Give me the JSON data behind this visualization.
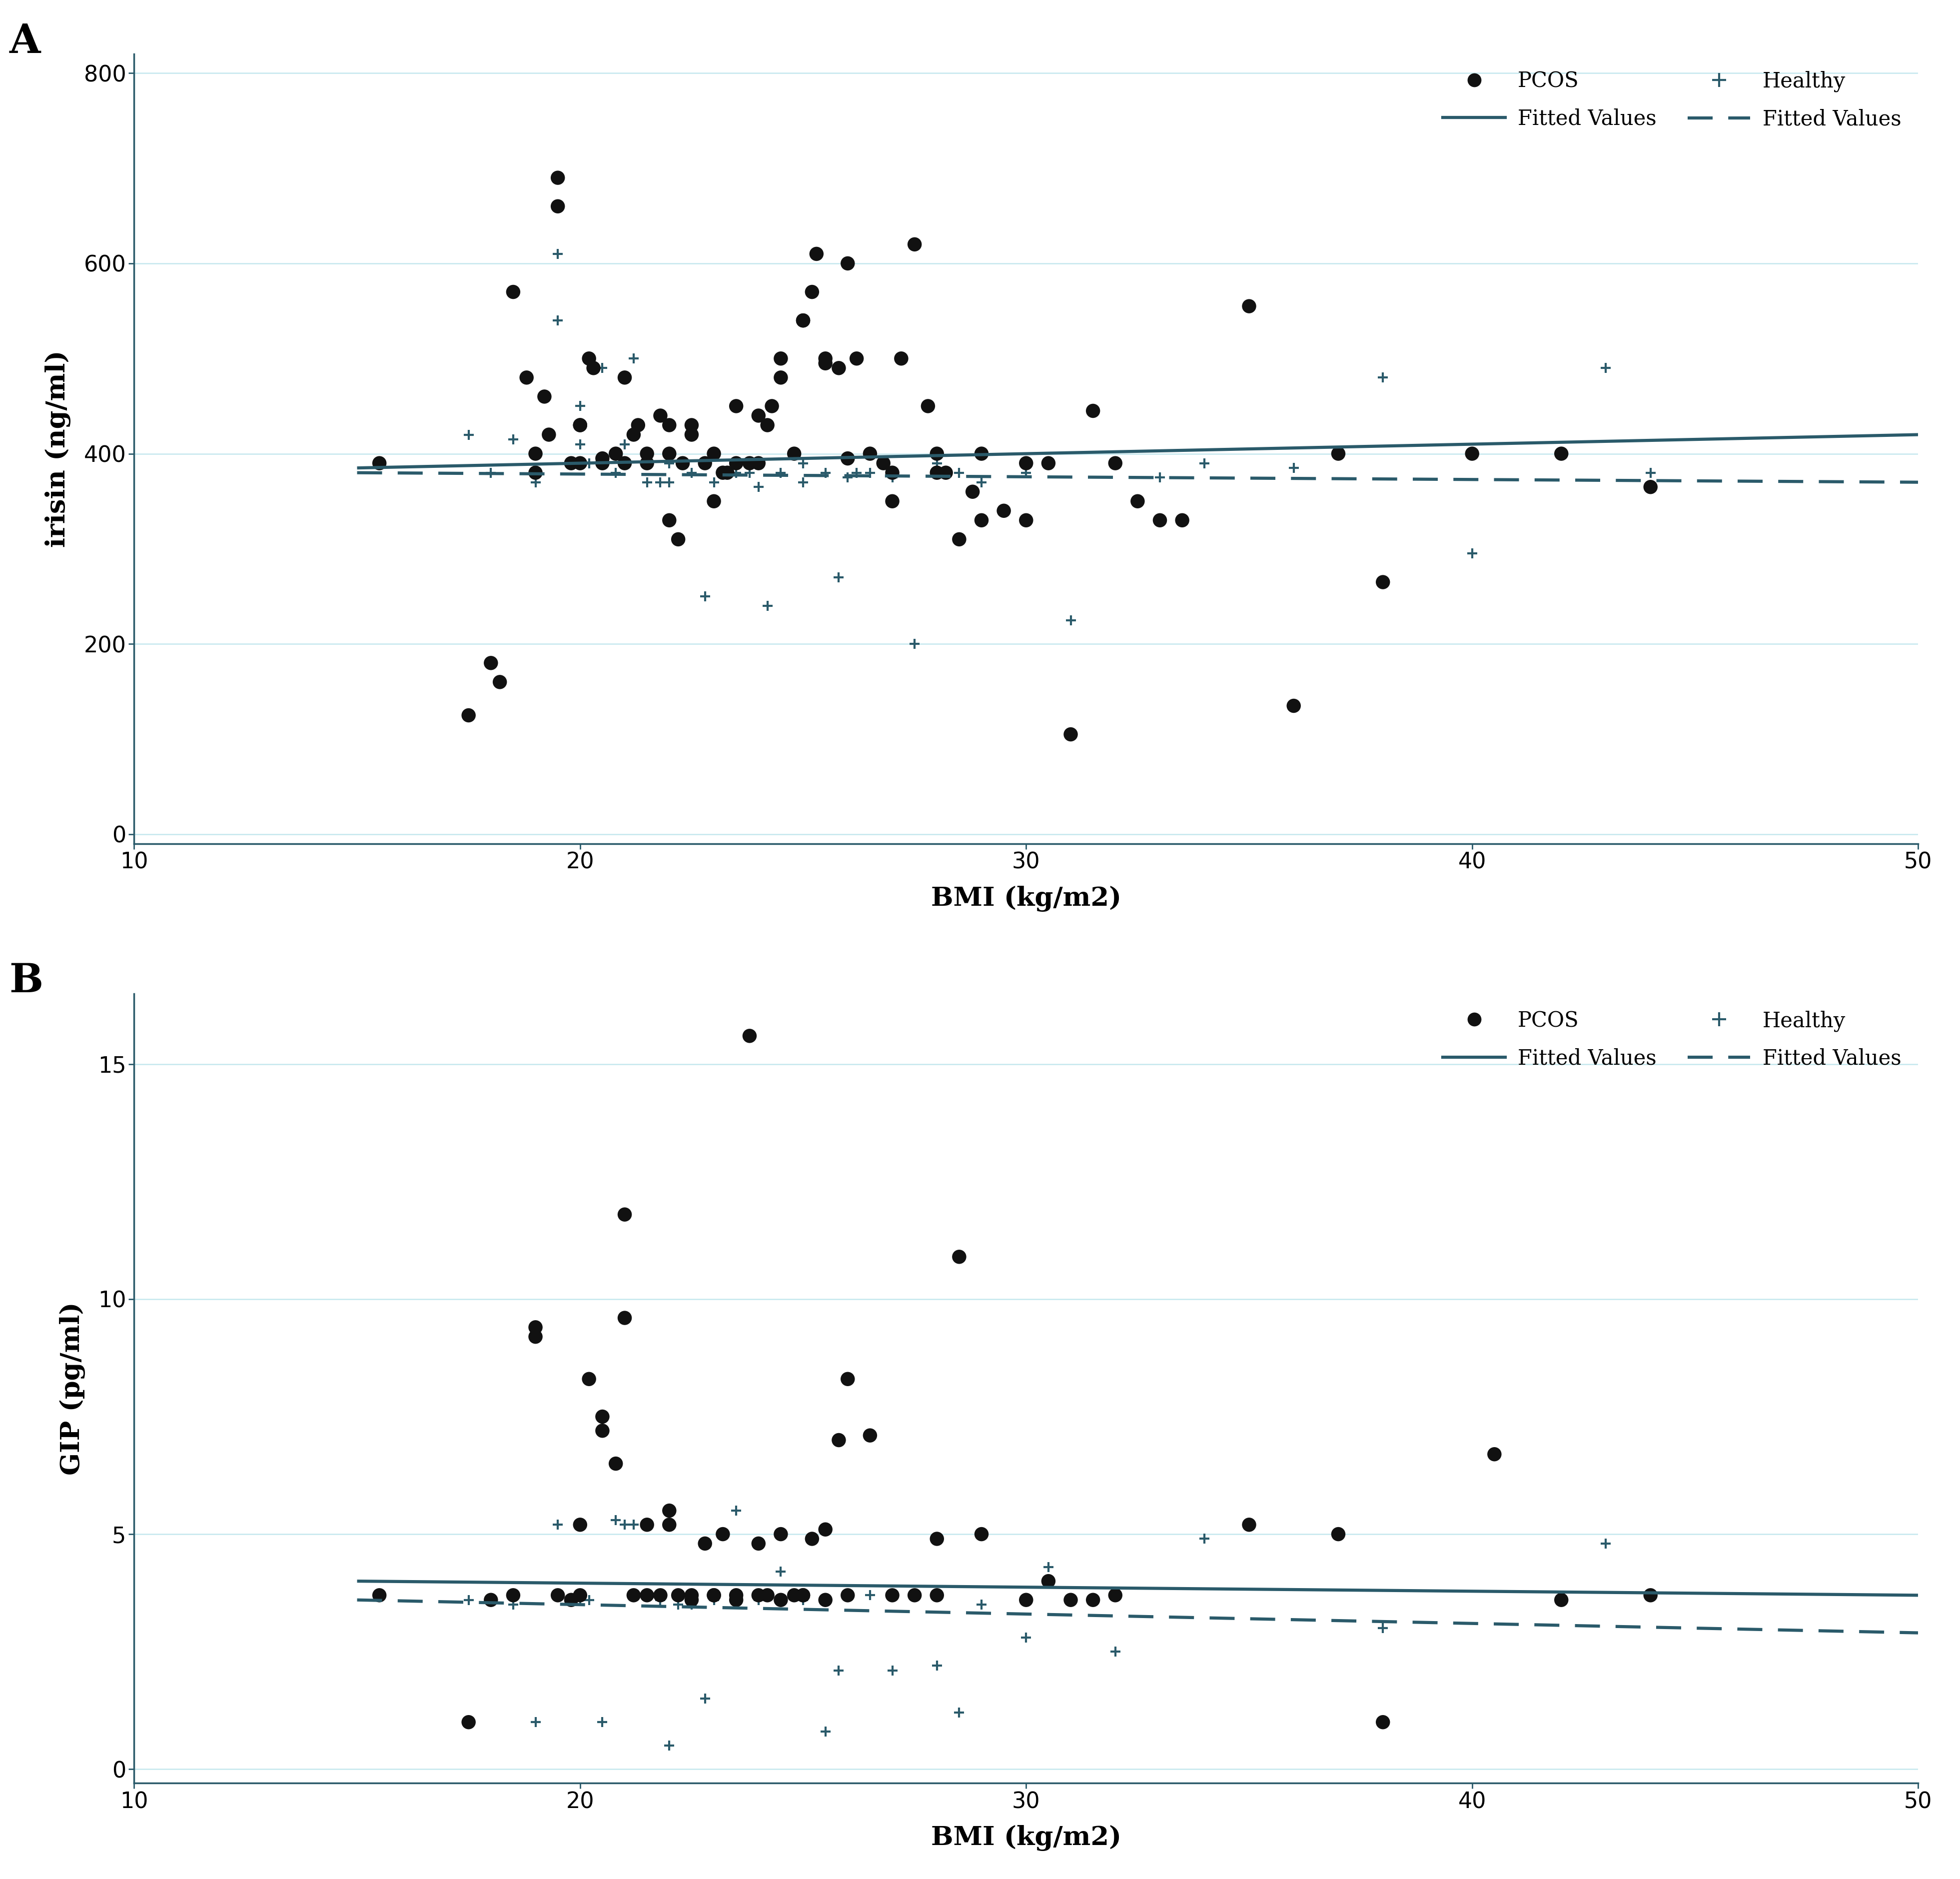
{
  "panel_A": {
    "pcos_bmi": [
      15.5,
      17.5,
      18.0,
      18.2,
      18.5,
      18.8,
      19.0,
      19.0,
      19.2,
      19.3,
      19.5,
      19.5,
      19.8,
      20.0,
      20.0,
      20.0,
      20.2,
      20.3,
      20.5,
      20.5,
      20.8,
      21.0,
      21.0,
      21.2,
      21.3,
      21.5,
      21.5,
      21.8,
      22.0,
      22.0,
      22.0,
      22.2,
      22.3,
      22.5,
      22.5,
      22.8,
      23.0,
      23.0,
      23.2,
      23.3,
      23.5,
      23.5,
      23.8,
      24.0,
      24.0,
      24.2,
      24.3,
      24.5,
      24.5,
      24.8,
      25.0,
      25.0,
      25.2,
      25.3,
      25.5,
      25.5,
      25.8,
      26.0,
      26.0,
      26.2,
      26.5,
      26.8,
      27.0,
      27.0,
      27.2,
      27.5,
      27.8,
      28.0,
      28.0,
      28.2,
      28.5,
      28.8,
      29.0,
      29.0,
      29.5,
      30.0,
      30.0,
      30.5,
      31.0,
      31.5,
      32.0,
      32.5,
      33.0,
      33.5,
      35.0,
      36.0,
      37.0,
      38.0,
      40.0,
      42.0,
      44.0
    ],
    "pcos_irisin": [
      390,
      125,
      180,
      160,
      570,
      480,
      380,
      400,
      460,
      420,
      660,
      690,
      390,
      390,
      430,
      430,
      500,
      490,
      395,
      390,
      400,
      480,
      390,
      420,
      430,
      400,
      390,
      440,
      430,
      400,
      330,
      310,
      390,
      420,
      430,
      390,
      350,
      400,
      380,
      380,
      450,
      390,
      390,
      390,
      440,
      430,
      450,
      480,
      500,
      400,
      540,
      540,
      570,
      610,
      500,
      495,
      490,
      395,
      600,
      500,
      400,
      390,
      380,
      350,
      500,
      620,
      450,
      380,
      400,
      380,
      310,
      360,
      400,
      330,
      340,
      390,
      330,
      390,
      105,
      445,
      390,
      350,
      330,
      330,
      555,
      135,
      400,
      265,
      400,
      400,
      365
    ],
    "healthy_bmi": [
      17.5,
      18.0,
      18.5,
      19.0,
      19.5,
      19.5,
      20.0,
      20.0,
      20.2,
      20.5,
      20.8,
      21.0,
      21.2,
      21.5,
      21.8,
      22.0,
      22.0,
      22.5,
      22.8,
      23.0,
      23.0,
      23.5,
      23.8,
      24.0,
      24.2,
      24.5,
      25.0,
      25.0,
      25.5,
      25.8,
      26.0,
      26.2,
      26.5,
      27.0,
      27.5,
      28.0,
      28.5,
      29.0,
      30.0,
      30.5,
      31.0,
      32.0,
      33.0,
      34.0,
      36.0,
      38.0,
      40.0,
      43.0,
      44.0
    ],
    "healthy_irisin": [
      420,
      380,
      415,
      370,
      610,
      540,
      450,
      410,
      390,
      490,
      380,
      410,
      500,
      370,
      370,
      370,
      390,
      380,
      250,
      370,
      400,
      380,
      380,
      365,
      240,
      380,
      390,
      370,
      380,
      270,
      375,
      380,
      380,
      375,
      200,
      390,
      380,
      370,
      380,
      390,
      225,
      390,
      375,
      390,
      385,
      480,
      295,
      490,
      380
    ],
    "pcos_fit_x": [
      15,
      50
    ],
    "pcos_fit_y": [
      385,
      420
    ],
    "healthy_fit_x": [
      15,
      50
    ],
    "healthy_fit_y": [
      380,
      370
    ],
    "xlabel": "BMI (kg/m2)",
    "ylabel": "irisin (ng/ml)",
    "xlim": [
      10,
      50
    ],
    "ylim": [
      -10,
      820
    ],
    "yticks": [
      0,
      200,
      400,
      600,
      800
    ],
    "xticks": [
      10,
      20,
      30,
      40,
      50
    ],
    "panel_label": "A"
  },
  "panel_B": {
    "pcos_bmi": [
      15.5,
      17.5,
      18.0,
      18.5,
      19.0,
      19.0,
      19.5,
      19.8,
      20.0,
      20.0,
      20.2,
      20.5,
      20.5,
      20.8,
      21.0,
      21.0,
      21.2,
      21.5,
      21.5,
      21.8,
      22.0,
      22.0,
      22.2,
      22.5,
      22.5,
      22.8,
      23.0,
      23.0,
      23.2,
      23.5,
      23.5,
      23.8,
      24.0,
      24.0,
      24.2,
      24.5,
      24.5,
      24.8,
      25.0,
      25.0,
      25.2,
      25.5,
      25.5,
      25.8,
      26.0,
      26.0,
      26.5,
      27.0,
      27.5,
      28.0,
      28.0,
      28.5,
      29.0,
      30.0,
      30.5,
      31.0,
      31.5,
      32.0,
      35.0,
      37.0,
      38.0,
      40.5,
      42.0,
      44.0
    ],
    "pcos_gip": [
      3.7,
      1.0,
      3.6,
      3.7,
      9.4,
      9.2,
      3.7,
      3.6,
      3.7,
      5.2,
      8.3,
      7.5,
      7.2,
      6.5,
      9.6,
      11.8,
      3.7,
      3.7,
      5.2,
      3.7,
      5.5,
      5.2,
      3.7,
      3.7,
      3.6,
      4.8,
      3.7,
      3.7,
      5.0,
      3.7,
      3.6,
      15.6,
      3.7,
      4.8,
      3.7,
      3.6,
      5.0,
      3.7,
      3.7,
      3.7,
      4.9,
      5.1,
      3.6,
      7.0,
      3.7,
      8.3,
      7.1,
      3.7,
      3.7,
      3.7,
      4.9,
      10.9,
      5.0,
      3.6,
      4.0,
      3.6,
      3.6,
      3.7,
      5.2,
      5.0,
      1.0,
      6.7,
      3.6,
      3.7
    ],
    "healthy_bmi": [
      17.5,
      18.0,
      18.5,
      19.0,
      19.5,
      20.0,
      20.2,
      20.5,
      20.8,
      21.0,
      21.2,
      21.5,
      21.8,
      22.0,
      22.2,
      22.5,
      22.8,
      23.0,
      23.5,
      24.0,
      24.5,
      25.0,
      25.5,
      25.8,
      26.0,
      26.5,
      27.0,
      28.0,
      28.5,
      29.0,
      30.0,
      30.5,
      32.0,
      34.0,
      38.0,
      43.0
    ],
    "healthy_gip": [
      3.6,
      3.6,
      3.5,
      1.0,
      5.2,
      3.6,
      3.6,
      1.0,
      5.3,
      5.2,
      5.2,
      3.7,
      3.6,
      0.5,
      3.5,
      3.5,
      1.5,
      3.6,
      5.5,
      3.6,
      4.2,
      3.6,
      0.8,
      2.1,
      3.7,
      3.7,
      2.1,
      2.2,
      1.2,
      3.5,
      2.8,
      4.3,
      2.5,
      4.9,
      3.0,
      4.8
    ],
    "pcos_fit_x": [
      15,
      50
    ],
    "pcos_fit_y": [
      4.0,
      3.7
    ],
    "healthy_fit_x": [
      15,
      50
    ],
    "healthy_fit_y": [
      3.6,
      2.9
    ],
    "xlabel": "BMI (kg/m2)",
    "ylabel": "GIP (pg/ml)",
    "xlim": [
      10,
      50
    ],
    "ylim": [
      -0.3,
      16.5
    ],
    "yticks": [
      0,
      5,
      10,
      15
    ],
    "xticks": [
      10,
      20,
      30,
      40,
      50
    ],
    "panel_label": "B"
  },
  "dot_color": "#111111",
  "cross_color": "#2a5a6a",
  "line_color": "#2a5a6a",
  "spine_color": "#2a5a6a",
  "grid_color": "#c5e8ee",
  "bg_color": "#ffffff",
  "pcos_marker_size": 420,
  "healthy_marker_size": 220,
  "line_width": 4.5,
  "tick_fontsize": 32,
  "label_fontsize": 38,
  "legend_fontsize": 30,
  "panel_label_fontsize": 58
}
